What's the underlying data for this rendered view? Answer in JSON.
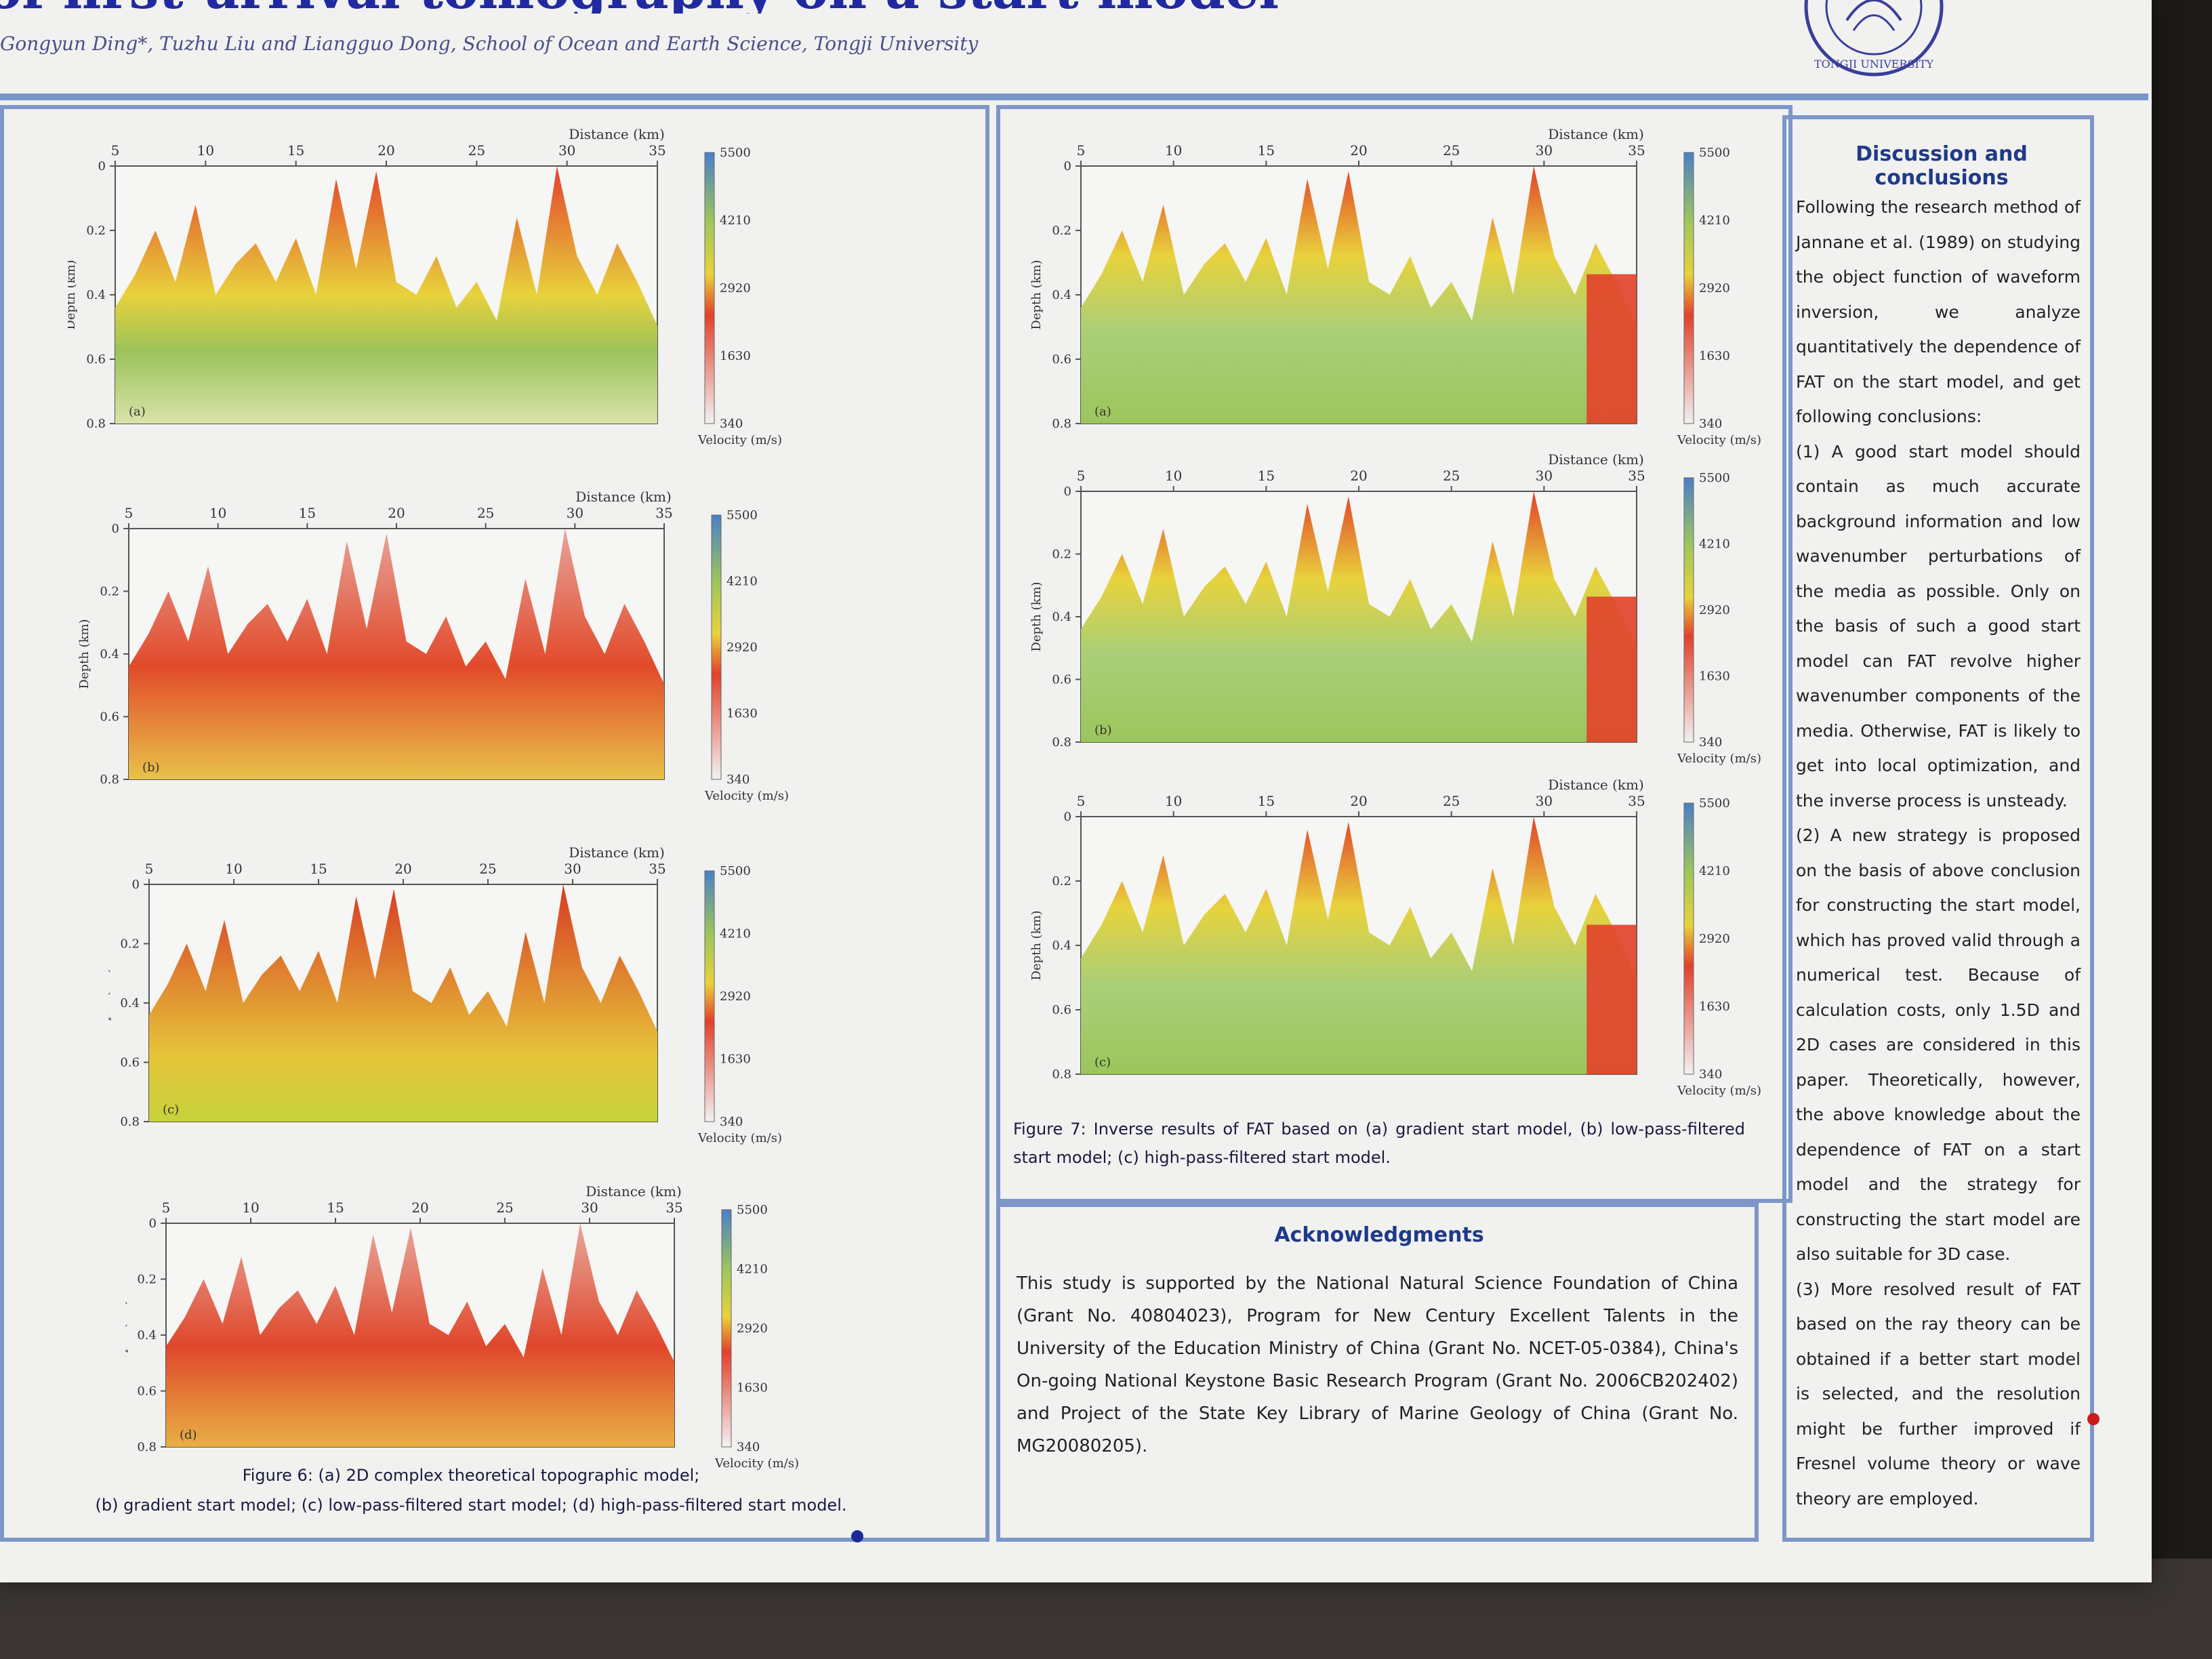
{
  "poster": {
    "title": "of first-arrival tomography on a start model",
    "authors": "Gongyun Ding*, Tuzhu Liu and Liangguo Dong, School of Ocean and Earth Science, Tongji University",
    "logo_text": "TONGJI UNIVERSITY"
  },
  "axes": {
    "distance_label": "Distance (km)",
    "depth_label": "Depth (km)",
    "velocity_label": "Velocity (m/s)",
    "colorbar_ticks": [
      "5500",
      "4210",
      "2920",
      "1630",
      "340"
    ],
    "depth_ticks": [
      "0",
      "0.2",
      "0.4",
      "0.6",
      "0.8"
    ],
    "x_ticks_left": [
      "5",
      "10",
      "15",
      "20",
      "25",
      "30",
      "35"
    ],
    "x_ticks_right": [
      "5",
      "10",
      "15",
      "20",
      "25",
      "30",
      "35"
    ]
  },
  "figure6": {
    "panels": [
      "(a)",
      "(b)",
      "(c)",
      "(d)"
    ],
    "caption_line1": "Figure 6: (a) 2D complex theoretical topographic model;",
    "caption_line2": "(b) gradient start model; (c) low-pass-filtered start model; (d) high-pass-filtered start model."
  },
  "figure7": {
    "panels": [
      "(a)",
      "(b)",
      "(c)"
    ],
    "caption": "Figure 7: Inverse results of FAT based on (a) gradient start model, (b) low-pass-filtered start model; (c) high-pass-filtered start model."
  },
  "acknowledgments": {
    "title": "Acknowledgments",
    "text": "This study is supported by the National Natural Science Foundation of China (Grant No. 40804023), Program for New Century Excellent Talents in the University of the Education Ministry of China (Grant No. NCET-05-0384), China's On-going National Keystone Basic Research Program (Grant No. 2006CB202402) and Project of the State Key Library of Marine Geology of China (Grant No. MG20080205)."
  },
  "discussion": {
    "title": "Discussion and conclusions",
    "intro": "Following the research method of Jannane et al. (1989) on studying the object function of waveform inversion, we analyze quantitatively the dependence of FAT on the start model, and get following conclusions:",
    "point1": "(1) A good start model should contain as much accurate background information and low wavenumber perturbations of the media as possible. Only on the basis of such a good start model can FAT revolve higher wavenumber components of the media. Otherwise, FAT is likely to get into local optimization, and the inverse process is unsteady.",
    "point2": "(2) A new strategy is proposed on the basis of above conclusion for constructing the start model, which has proved valid through a numerical test. Because of calculation costs, only 1.5D and 2D cases are considered in this paper. Theoretically, however, the above knowledge about the dependence of FAT on a start model and the strategy for constructing the start model are also suitable for 3D case.",
    "point3": "(3) More resolved result of FAT based on the ray theory can be obtained if a better start model is selected, and the resolution might be further improved if Fresnel volume theory or wave theory are employed."
  },
  "colors": {
    "panel_border": "#7c96c8",
    "title_blue": "#1f2aa0",
    "heading_blue": "#1e3a8a"
  }
}
